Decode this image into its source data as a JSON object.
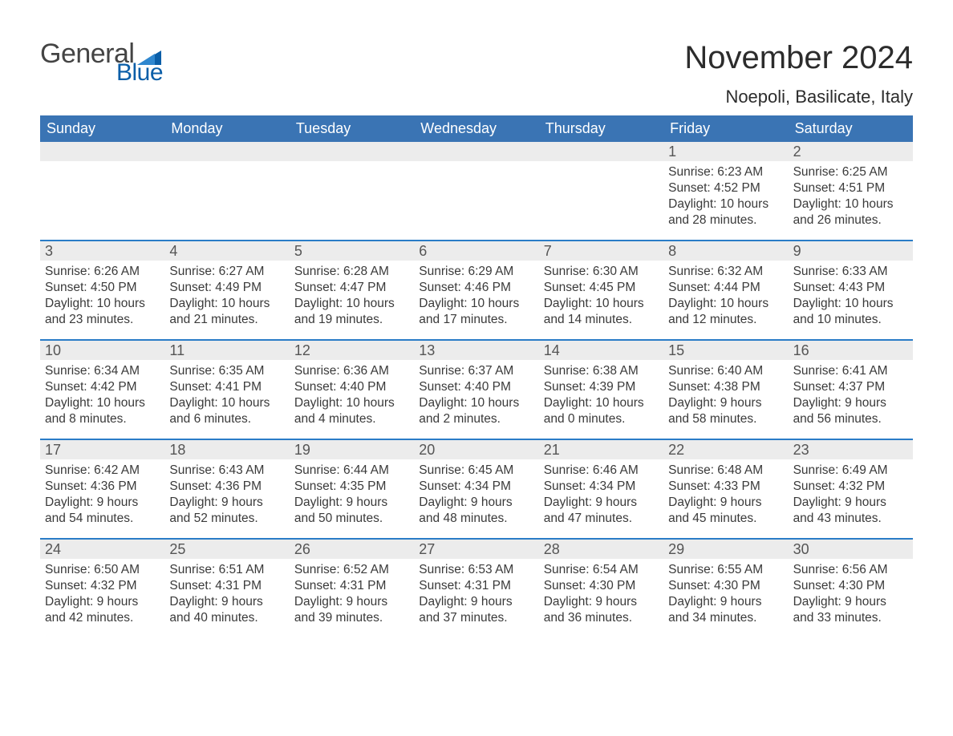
{
  "logo": {
    "word1": "General",
    "word2": "Blue"
  },
  "title": "November 2024",
  "location": "Noepoli, Basilicate, Italy",
  "colors": {
    "header_blue": "#3a74b4",
    "accent_blue": "#2a7cc7",
    "row_grey": "#ececec",
    "text": "#333333",
    "logo_primary": "#0a5ea8",
    "background": "#ffffff"
  },
  "typography": {
    "title_fontsize": 40,
    "location_fontsize": 22,
    "dow_fontsize": 18,
    "daynum_fontsize": 18,
    "body_fontsize": 15.5
  },
  "days_of_week": [
    "Sunday",
    "Monday",
    "Tuesday",
    "Wednesday",
    "Thursday",
    "Friday",
    "Saturday"
  ],
  "weeks": [
    [
      {
        "n": "",
        "sr": "",
        "ss": "",
        "dl": ""
      },
      {
        "n": "",
        "sr": "",
        "ss": "",
        "dl": ""
      },
      {
        "n": "",
        "sr": "",
        "ss": "",
        "dl": ""
      },
      {
        "n": "",
        "sr": "",
        "ss": "",
        "dl": ""
      },
      {
        "n": "",
        "sr": "",
        "ss": "",
        "dl": ""
      },
      {
        "n": "1",
        "sr": "Sunrise: 6:23 AM",
        "ss": "Sunset: 4:52 PM",
        "dl": "Daylight: 10 hours and 28 minutes."
      },
      {
        "n": "2",
        "sr": "Sunrise: 6:25 AM",
        "ss": "Sunset: 4:51 PM",
        "dl": "Daylight: 10 hours and 26 minutes."
      }
    ],
    [
      {
        "n": "3",
        "sr": "Sunrise: 6:26 AM",
        "ss": "Sunset: 4:50 PM",
        "dl": "Daylight: 10 hours and 23 minutes."
      },
      {
        "n": "4",
        "sr": "Sunrise: 6:27 AM",
        "ss": "Sunset: 4:49 PM",
        "dl": "Daylight: 10 hours and 21 minutes."
      },
      {
        "n": "5",
        "sr": "Sunrise: 6:28 AM",
        "ss": "Sunset: 4:47 PM",
        "dl": "Daylight: 10 hours and 19 minutes."
      },
      {
        "n": "6",
        "sr": "Sunrise: 6:29 AM",
        "ss": "Sunset: 4:46 PM",
        "dl": "Daylight: 10 hours and 17 minutes."
      },
      {
        "n": "7",
        "sr": "Sunrise: 6:30 AM",
        "ss": "Sunset: 4:45 PM",
        "dl": "Daylight: 10 hours and 14 minutes."
      },
      {
        "n": "8",
        "sr": "Sunrise: 6:32 AM",
        "ss": "Sunset: 4:44 PM",
        "dl": "Daylight: 10 hours and 12 minutes."
      },
      {
        "n": "9",
        "sr": "Sunrise: 6:33 AM",
        "ss": "Sunset: 4:43 PM",
        "dl": "Daylight: 10 hours and 10 minutes."
      }
    ],
    [
      {
        "n": "10",
        "sr": "Sunrise: 6:34 AM",
        "ss": "Sunset: 4:42 PM",
        "dl": "Daylight: 10 hours and 8 minutes."
      },
      {
        "n": "11",
        "sr": "Sunrise: 6:35 AM",
        "ss": "Sunset: 4:41 PM",
        "dl": "Daylight: 10 hours and 6 minutes."
      },
      {
        "n": "12",
        "sr": "Sunrise: 6:36 AM",
        "ss": "Sunset: 4:40 PM",
        "dl": "Daylight: 10 hours and 4 minutes."
      },
      {
        "n": "13",
        "sr": "Sunrise: 6:37 AM",
        "ss": "Sunset: 4:40 PM",
        "dl": "Daylight: 10 hours and 2 minutes."
      },
      {
        "n": "14",
        "sr": "Sunrise: 6:38 AM",
        "ss": "Sunset: 4:39 PM",
        "dl": "Daylight: 10 hours and 0 minutes."
      },
      {
        "n": "15",
        "sr": "Sunrise: 6:40 AM",
        "ss": "Sunset: 4:38 PM",
        "dl": "Daylight: 9 hours and 58 minutes."
      },
      {
        "n": "16",
        "sr": "Sunrise: 6:41 AM",
        "ss": "Sunset: 4:37 PM",
        "dl": "Daylight: 9 hours and 56 minutes."
      }
    ],
    [
      {
        "n": "17",
        "sr": "Sunrise: 6:42 AM",
        "ss": "Sunset: 4:36 PM",
        "dl": "Daylight: 9 hours and 54 minutes."
      },
      {
        "n": "18",
        "sr": "Sunrise: 6:43 AM",
        "ss": "Sunset: 4:36 PM",
        "dl": "Daylight: 9 hours and 52 minutes."
      },
      {
        "n": "19",
        "sr": "Sunrise: 6:44 AM",
        "ss": "Sunset: 4:35 PM",
        "dl": "Daylight: 9 hours and 50 minutes."
      },
      {
        "n": "20",
        "sr": "Sunrise: 6:45 AM",
        "ss": "Sunset: 4:34 PM",
        "dl": "Daylight: 9 hours and 48 minutes."
      },
      {
        "n": "21",
        "sr": "Sunrise: 6:46 AM",
        "ss": "Sunset: 4:34 PM",
        "dl": "Daylight: 9 hours and 47 minutes."
      },
      {
        "n": "22",
        "sr": "Sunrise: 6:48 AM",
        "ss": "Sunset: 4:33 PM",
        "dl": "Daylight: 9 hours and 45 minutes."
      },
      {
        "n": "23",
        "sr": "Sunrise: 6:49 AM",
        "ss": "Sunset: 4:32 PM",
        "dl": "Daylight: 9 hours and 43 minutes."
      }
    ],
    [
      {
        "n": "24",
        "sr": "Sunrise: 6:50 AM",
        "ss": "Sunset: 4:32 PM",
        "dl": "Daylight: 9 hours and 42 minutes."
      },
      {
        "n": "25",
        "sr": "Sunrise: 6:51 AM",
        "ss": "Sunset: 4:31 PM",
        "dl": "Daylight: 9 hours and 40 minutes."
      },
      {
        "n": "26",
        "sr": "Sunrise: 6:52 AM",
        "ss": "Sunset: 4:31 PM",
        "dl": "Daylight: 9 hours and 39 minutes."
      },
      {
        "n": "27",
        "sr": "Sunrise: 6:53 AM",
        "ss": "Sunset: 4:31 PM",
        "dl": "Daylight: 9 hours and 37 minutes."
      },
      {
        "n": "28",
        "sr": "Sunrise: 6:54 AM",
        "ss": "Sunset: 4:30 PM",
        "dl": "Daylight: 9 hours and 36 minutes."
      },
      {
        "n": "29",
        "sr": "Sunrise: 6:55 AM",
        "ss": "Sunset: 4:30 PM",
        "dl": "Daylight: 9 hours and 34 minutes."
      },
      {
        "n": "30",
        "sr": "Sunrise: 6:56 AM",
        "ss": "Sunset: 4:30 PM",
        "dl": "Daylight: 9 hours and 33 minutes."
      }
    ]
  ]
}
